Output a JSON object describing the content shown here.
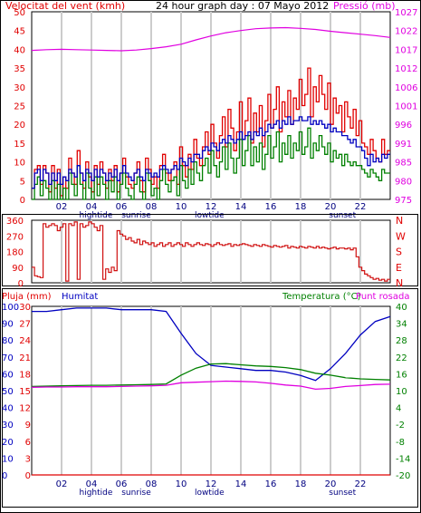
{
  "header": {
    "wind_title": "Velocitat del vent (kmh)",
    "center_title": "24 hour graph day : 07 Mayo 2012",
    "pressure_title": "Pressió (mb)"
  },
  "colors": {
    "red": "#e00000",
    "blue": "#0000c0",
    "green": "#008000",
    "magenta": "#e000e0",
    "dark_red": "#d01010",
    "grid": "#cccccc",
    "frame": "#000000"
  },
  "x_axis": {
    "hour_labels": [
      "02",
      "04",
      "06",
      "08",
      "10",
      "12",
      "14",
      "16",
      "18",
      "20",
      "22"
    ],
    "events": [
      {
        "label": "hightide",
        "hour": 4.3
      },
      {
        "label": "sunrise",
        "hour": 7.0
      },
      {
        "label": "lowtide",
        "hour": 11.9
      },
      {
        "label": "sunset",
        "hour": 20.8
      }
    ]
  },
  "panel3_header": {
    "rain_label": "Pluja (mm)",
    "humidity_label": "Humitat",
    "temp_label": "Temperatura (°C)",
    "dew_label": "Punt rosada"
  },
  "chart_data": [
    {
      "type": "line",
      "panel": "wind_pressure",
      "x_range": [
        0,
        24
      ],
      "wind_axis": {
        "min": 0,
        "max": 50,
        "ticks": [
          0,
          5,
          10,
          15,
          20,
          25,
          30,
          35,
          40,
          45,
          50
        ]
      },
      "pressure_axis": {
        "min": 975,
        "max": 1027,
        "ticks": [
          975,
          980,
          985,
          991,
          996,
          1001,
          1006,
          1012,
          1017,
          1022,
          1027
        ]
      },
      "series": [
        {
          "name": "",
          "color": "#e00000",
          "values": [
            3,
            8,
            9,
            4,
            9,
            7,
            2,
            9,
            3,
            8,
            1,
            6,
            3,
            11,
            7,
            4,
            13,
            7,
            3,
            10,
            6,
            2,
            9,
            4,
            10,
            7,
            3,
            8,
            5,
            9,
            2,
            7,
            11,
            6,
            4,
            3,
            7,
            10,
            5,
            2,
            11,
            8,
            4,
            6,
            3,
            9,
            12,
            7,
            5,
            8,
            10,
            4,
            14,
            9,
            6,
            12,
            8,
            16,
            11,
            9,
            14,
            18,
            12,
            20,
            15,
            11,
            17,
            22,
            14,
            24,
            19,
            13,
            18,
            26,
            16,
            21,
            27,
            15,
            23,
            18,
            25,
            14,
            21,
            28,
            19,
            24,
            30,
            18,
            26,
            22,
            29,
            20,
            27,
            24,
            32,
            25,
            28,
            35,
            22,
            30,
            26,
            33,
            28,
            24,
            31,
            20,
            27,
            23,
            25,
            18,
            26,
            22,
            19,
            24,
            17,
            21,
            15,
            14,
            12,
            16,
            13,
            11,
            10,
            16,
            12,
            13
          ]
        },
        {
          "name": "",
          "color": "#0000c0",
          "values": [
            3,
            7,
            8,
            5,
            8,
            7,
            4,
            7,
            5,
            7,
            4,
            6,
            5,
            8,
            7,
            6,
            9,
            7,
            5,
            8,
            7,
            5,
            8,
            6,
            8,
            7,
            5,
            7,
            6,
            8,
            5,
            7,
            9,
            7,
            6,
            5,
            7,
            8,
            6,
            5,
            8,
            7,
            6,
            7,
            6,
            8,
            9,
            8,
            7,
            8,
            9,
            8,
            11,
            10,
            9,
            11,
            10,
            12,
            12,
            11,
            13,
            14,
            13,
            15,
            14,
            13,
            15,
            16,
            15,
            17,
            16,
            15,
            16,
            18,
            16,
            17,
            18,
            16,
            18,
            17,
            19,
            17,
            18,
            20,
            19,
            20,
            21,
            19,
            21,
            20,
            22,
            20,
            21,
            21,
            22,
            21,
            21,
            22,
            20,
            21,
            20,
            21,
            20,
            19,
            20,
            18,
            19,
            18,
            18,
            17,
            17,
            16,
            15,
            16,
            14,
            14,
            13,
            11,
            9,
            12,
            10,
            11,
            10,
            12,
            11,
            12
          ]
        },
        {
          "name": "",
          "color": "#008000",
          "values": [
            0,
            4,
            6,
            1,
            5,
            3,
            0,
            5,
            0,
            4,
            0,
            3,
            0,
            7,
            4,
            1,
            9,
            4,
            0,
            7,
            3,
            0,
            6,
            1,
            6,
            4,
            0,
            5,
            2,
            6,
            0,
            4,
            7,
            3,
            1,
            0,
            4,
            6,
            2,
            0,
            7,
            5,
            1,
            3,
            0,
            5,
            8,
            4,
            2,
            5,
            6,
            1,
            9,
            5,
            3,
            8,
            4,
            10,
            7,
            5,
            9,
            11,
            7,
            13,
            9,
            6,
            10,
            14,
            8,
            15,
            11,
            7,
            11,
            16,
            9,
            13,
            17,
            9,
            14,
            10,
            15,
            8,
            12,
            17,
            11,
            14,
            18,
            10,
            15,
            12,
            17,
            11,
            15,
            13,
            18,
            12,
            14,
            19,
            11,
            15,
            13,
            17,
            14,
            12,
            15,
            10,
            13,
            11,
            12,
            9,
            12,
            10,
            9,
            10,
            9,
            9,
            8,
            7,
            6,
            8,
            7,
            6,
            5,
            8,
            7,
            7
          ]
        },
        {
          "name": "",
          "color": "#e000e0",
          "axis": "pressure",
          "values": [
            1016.3,
            1016.5,
            1016.6,
            1016.5,
            1016.4,
            1016.3,
            1016.2,
            1016.4,
            1016.8,
            1017.3,
            1018.0,
            1019.2,
            1020.3,
            1021.2,
            1021.8,
            1022.3,
            1022.5,
            1022.6,
            1022.4,
            1022.1,
            1021.6,
            1021.2,
            1020.8,
            1020.4,
            1019.9
          ]
        }
      ]
    },
    {
      "type": "line",
      "panel": "wind_direction",
      "x_range": [
        0,
        24
      ],
      "y_axis": {
        "min": 0,
        "max": 360,
        "ticks": [
          0,
          90,
          180,
          270,
          360
        ]
      },
      "compass_labels": [
        "N",
        "W",
        "S",
        "E",
        "N"
      ],
      "series": [
        {
          "name": "",
          "color": "#d01010",
          "values": [
            90,
            40,
            35,
            30,
            340,
            320,
            330,
            340,
            330,
            300,
            320,
            340,
            10,
            340,
            330,
            350,
            20,
            340,
            320,
            330,
            350,
            340,
            320,
            300,
            330,
            20,
            80,
            60,
            90,
            70,
            300,
            280,
            270,
            250,
            260,
            240,
            230,
            250,
            220,
            240,
            230,
            220,
            230,
            210,
            220,
            230,
            210,
            220,
            230,
            210,
            220,
            230,
            220,
            210,
            230,
            220,
            210,
            220,
            230,
            220,
            215,
            225,
            220,
            210,
            220,
            230,
            220,
            215,
            220,
            225,
            210,
            220,
            215,
            220,
            225,
            220,
            215,
            210,
            220,
            215,
            210,
            220,
            215,
            210,
            205,
            215,
            210,
            205,
            210,
            215,
            200,
            210,
            205,
            200,
            210,
            205,
            200,
            210,
            205,
            200,
            210,
            200,
            205,
            200,
            195,
            200,
            205,
            195,
            200,
            200,
            195,
            200,
            190,
            200,
            150,
            90,
            70,
            50,
            40,
            30,
            20,
            25,
            15,
            20,
            10,
            20
          ]
        }
      ]
    },
    {
      "type": "line",
      "panel": "rain_humidity_temperature",
      "x_range": [
        0,
        24
      ],
      "rain_axis": {
        "min": 0,
        "max": 30,
        "ticks": [
          0,
          3,
          6,
          9,
          12,
          15,
          18,
          21,
          24,
          27,
          30
        ]
      },
      "humidity_axis": {
        "min": 0,
        "max": 100,
        "ticks": [
          0,
          10,
          20,
          30,
          40,
          50,
          60,
          70,
          80,
          90,
          100
        ]
      },
      "temperature_axis": {
        "min": -20,
        "max": 40,
        "ticks": [
          -20,
          -14,
          -8,
          -2,
          4,
          10,
          16,
          22,
          28,
          34,
          40
        ]
      },
      "series": [
        {
          "name": "",
          "color": "#e00000",
          "axis": "rain",
          "values": [
            0,
            0,
            0,
            0,
            0,
            0,
            0,
            0,
            0,
            0,
            0,
            0,
            0,
            0,
            0,
            0,
            0,
            0,
            0,
            0,
            0,
            0,
            0,
            0,
            0
          ]
        },
        {
          "name": "",
          "color": "#0000c0",
          "axis": "humidity",
          "values": [
            97,
            97,
            98,
            99,
            99,
            99,
            98,
            98,
            98,
            97,
            84,
            72,
            65,
            64,
            63,
            62,
            62,
            61,
            59,
            56,
            63,
            72,
            83,
            91,
            94
          ]
        },
        {
          "name": "",
          "color": "#008000",
          "axis": "temperature",
          "values": [
            11.5,
            11.6,
            11.7,
            11.8,
            11.9,
            11.9,
            12.0,
            12.1,
            12.2,
            12.4,
            15.5,
            18.0,
            19.5,
            19.6,
            19.2,
            18.8,
            18.6,
            18.2,
            17.5,
            16.2,
            15.5,
            14.6,
            14.2,
            14.0,
            13.8
          ]
        },
        {
          "name": "",
          "color": "#e000e0",
          "axis": "temperature",
          "values": [
            11.2,
            11.3,
            11.3,
            11.4,
            11.4,
            11.4,
            11.5,
            11.6,
            11.7,
            11.9,
            12.8,
            13.0,
            13.2,
            13.4,
            13.3,
            13.1,
            12.6,
            12.0,
            11.6,
            10.5,
            10.8,
            11.5,
            11.8,
            12.2,
            12.3
          ]
        }
      ]
    }
  ]
}
